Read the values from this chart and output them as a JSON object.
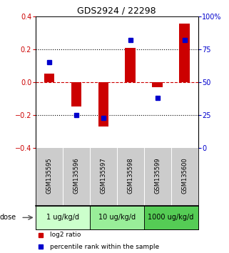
{
  "title": "GDS2924 / 22298",
  "samples": [
    "GSM135595",
    "GSM135596",
    "GSM135597",
    "GSM135598",
    "GSM135599",
    "GSM135600"
  ],
  "log2_ratio": [
    0.05,
    -0.15,
    -0.27,
    0.21,
    -0.03,
    0.355
  ],
  "percentile_rank_actual": [
    65,
    25,
    23,
    82,
    38,
    82
  ],
  "bar_color": "#cc0000",
  "dot_color": "#0000cc",
  "ylim": [
    -0.4,
    0.4
  ],
  "y2lim": [
    0,
    100
  ],
  "yticks": [
    -0.4,
    -0.2,
    0.0,
    0.2,
    0.4
  ],
  "y2ticks": [
    0,
    25,
    50,
    75,
    100
  ],
  "dose_groups": [
    {
      "label": "1 ug/kg/d",
      "samples": [
        0,
        1
      ],
      "color": "#ccffcc"
    },
    {
      "label": "10 ug/kg/d",
      "samples": [
        2,
        3
      ],
      "color": "#99ee99"
    },
    {
      "label": "1000 ug/kg/d",
      "samples": [
        4,
        5
      ],
      "color": "#55cc55"
    }
  ],
  "dose_label": "dose",
  "legend_log2": "log2 ratio",
  "legend_pct": "percentile rank within the sample",
  "bg_color": "#ffffff",
  "hline_color": "#cc0000",
  "dotted_color": "#000000",
  "sample_bg": "#cccccc"
}
